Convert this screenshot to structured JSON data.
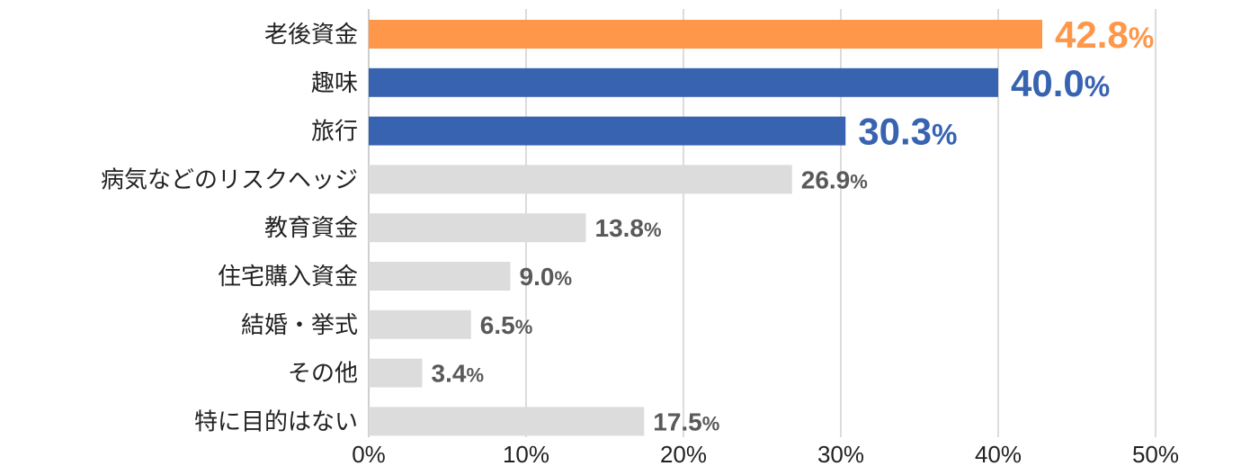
{
  "chart_data": {
    "type": "bar",
    "orientation": "horizontal",
    "categories": [
      "老後資金",
      "趣味",
      "旅行",
      "病気などのリスクヘッジ",
      "教育資金",
      "住宅購入資金",
      "結婚・挙式",
      "その他",
      "特に目的はない"
    ],
    "values": [
      42.8,
      40.0,
      30.3,
      26.9,
      13.8,
      9.0,
      6.5,
      3.4,
      17.5
    ],
    "value_labels": [
      "42.8",
      "40.0",
      "30.3",
      "26.9",
      "13.8",
      "9.0",
      "6.5",
      "3.4",
      "17.5"
    ],
    "value_suffix": "%",
    "xlim": [
      0,
      50
    ],
    "x_ticks": [
      0,
      10,
      20,
      30,
      40,
      50
    ],
    "x_tick_labels": [
      "0%",
      "10%",
      "20%",
      "30%",
      "40%",
      "50%"
    ],
    "grid": true,
    "title": "",
    "xlabel": "",
    "ylabel": "",
    "colors": {
      "highlight_first": "#FF974A",
      "highlight": "#3763B1",
      "default": "#DCDCDC",
      "default_label": "#595959"
    },
    "bar_colors": [
      "#FF974A",
      "#3763B1",
      "#3763B1",
      "#DCDCDC",
      "#DCDCDC",
      "#DCDCDC",
      "#DCDCDC",
      "#DCDCDC",
      "#DCDCDC"
    ],
    "label_colors": [
      "#FF974A",
      "#3763B1",
      "#3763B1",
      "#595959",
      "#595959",
      "#595959",
      "#595959",
      "#595959",
      "#595959"
    ],
    "label_emphasis": [
      "large",
      "large",
      "large",
      "normal",
      "normal",
      "normal",
      "normal",
      "normal",
      "normal"
    ]
  }
}
